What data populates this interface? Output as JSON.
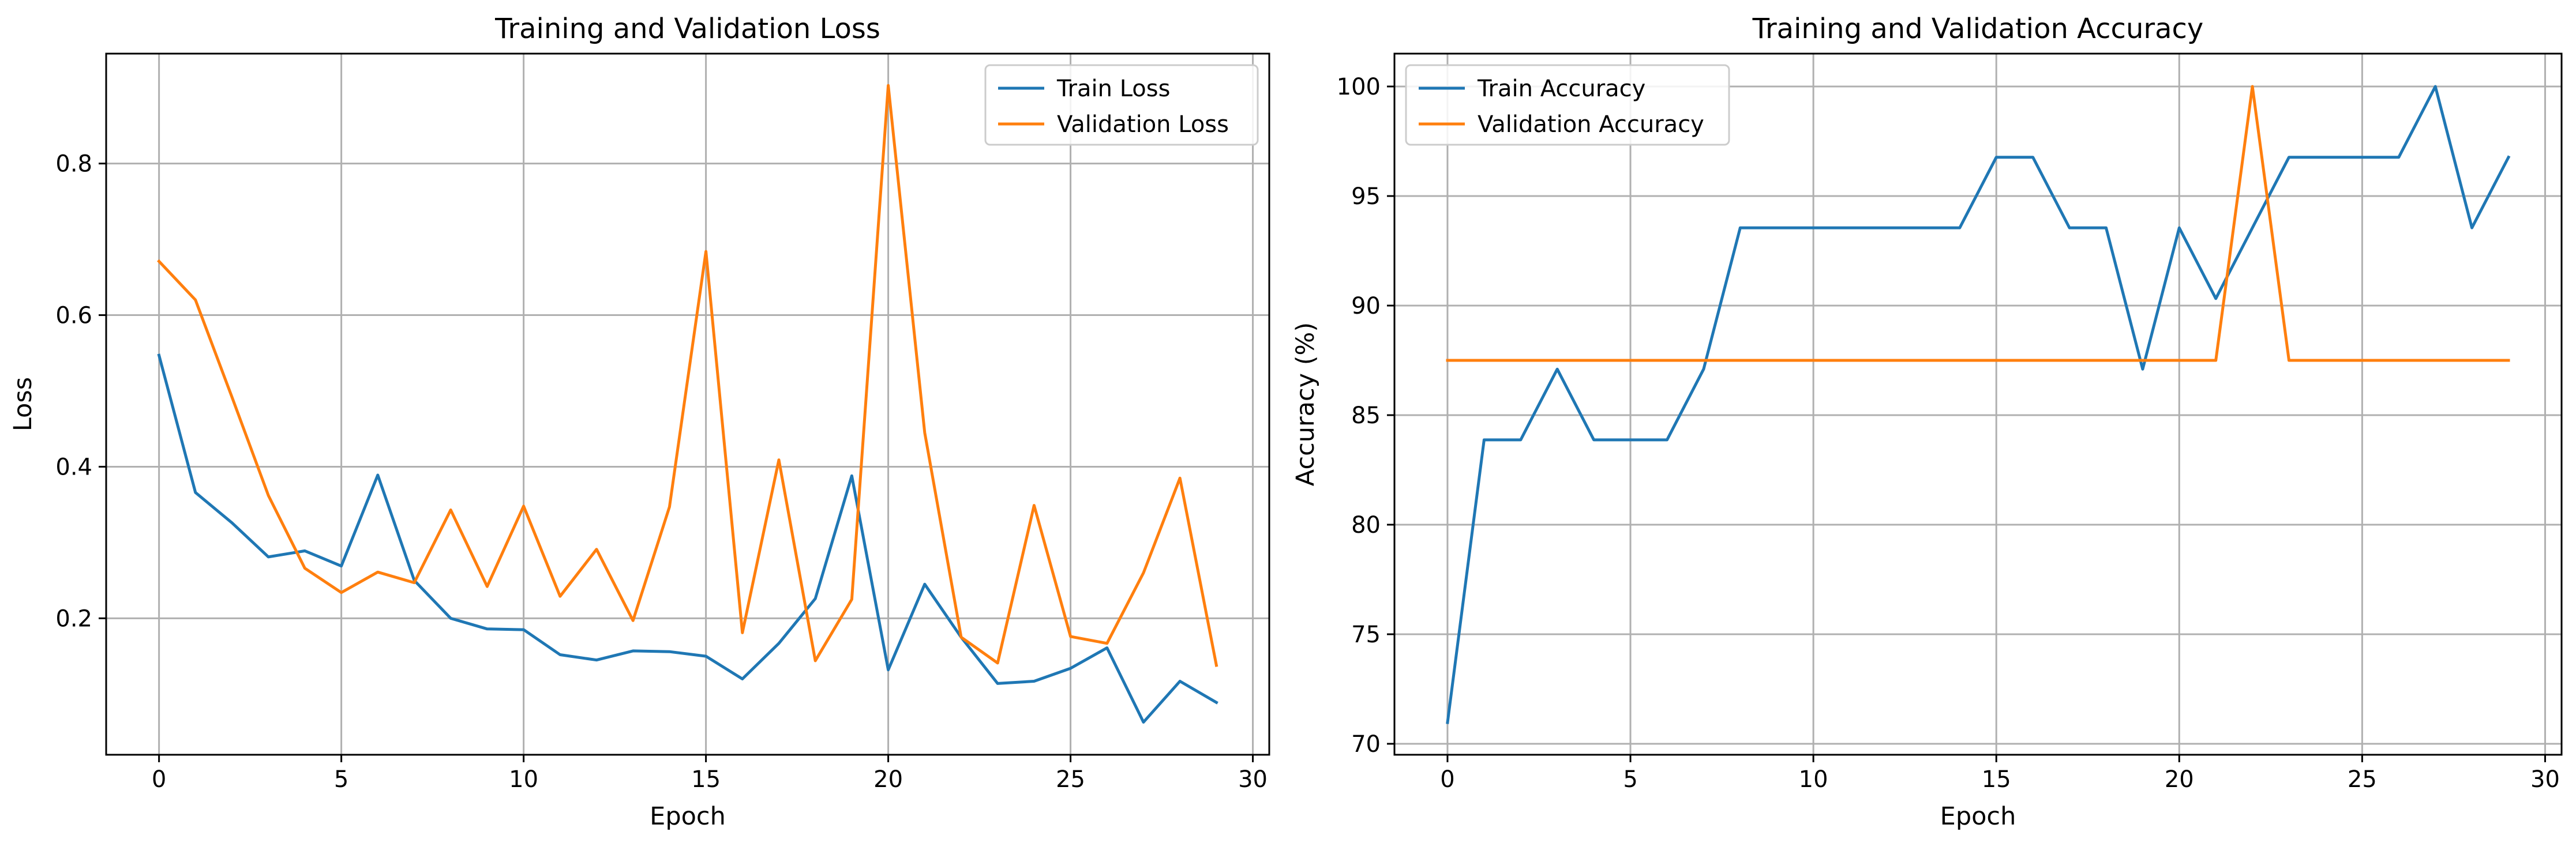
{
  "chart_data": [
    {
      "type": "line",
      "title": "Training and Validation Loss",
      "xlabel": "Epoch",
      "ylabel": "Loss",
      "xlim": [
        -1.45,
        30.45
      ],
      "ylim": [
        0.02,
        0.945
      ],
      "xticks": [
        0,
        5,
        10,
        15,
        20,
        25,
        30
      ],
      "xtick_labels": [
        "0",
        "5",
        "10",
        "15",
        "20",
        "25",
        "30"
      ],
      "yticks": [
        0.2,
        0.4,
        0.6,
        0.8
      ],
      "ytick_labels": [
        "0.2",
        "0.4",
        "0.6",
        "0.8"
      ],
      "grid": true,
      "legend": "upper right",
      "x": [
        0,
        1,
        2,
        3,
        4,
        5,
        6,
        7,
        8,
        9,
        10,
        11,
        12,
        13,
        14,
        15,
        16,
        17,
        18,
        19,
        20,
        21,
        22,
        23,
        24,
        25,
        26,
        27,
        28,
        29
      ],
      "series": [
        {
          "name": "Train Loss",
          "color": "#1f77b4",
          "values": [
            0.547,
            0.366,
            0.326,
            0.281,
            0.289,
            0.269,
            0.389,
            0.25,
            0.2,
            0.186,
            0.185,
            0.152,
            0.145,
            0.157,
            0.156,
            0.15,
            0.12,
            0.167,
            0.226,
            0.388,
            0.132,
            0.245,
            0.175,
            0.114,
            0.117,
            0.134,
            0.161,
            0.063,
            0.117,
            0.089
          ]
        },
        {
          "name": "Validation Loss",
          "color": "#ff7f0e",
          "values": [
            0.671,
            0.62,
            0.492,
            0.362,
            0.266,
            0.234,
            0.261,
            0.247,
            0.343,
            0.242,
            0.348,
            0.229,
            0.291,
            0.197,
            0.347,
            0.684,
            0.181,
            0.409,
            0.144,
            0.225,
            0.903,
            0.445,
            0.175,
            0.141,
            0.349,
            0.176,
            0.167,
            0.26,
            0.385,
            0.138
          ]
        }
      ]
    },
    {
      "type": "line",
      "title": "Training and Validation Accuracy",
      "xlabel": "Epoch",
      "ylabel": "Accuracy (%)",
      "xlim": [
        -1.45,
        30.45
      ],
      "ylim": [
        69.5,
        101.5
      ],
      "xticks": [
        0,
        5,
        10,
        15,
        20,
        25,
        30
      ],
      "xtick_labels": [
        "0",
        "5",
        "10",
        "15",
        "20",
        "25",
        "30"
      ],
      "yticks": [
        70,
        75,
        80,
        85,
        90,
        95,
        100
      ],
      "ytick_labels": [
        "70",
        "75",
        "80",
        "85",
        "90",
        "95",
        "100"
      ],
      "grid": true,
      "legend": "upper left",
      "x": [
        0,
        1,
        2,
        3,
        4,
        5,
        6,
        7,
        8,
        9,
        10,
        11,
        12,
        13,
        14,
        15,
        16,
        17,
        18,
        19,
        20,
        21,
        22,
        23,
        24,
        25,
        26,
        27,
        28,
        29
      ],
      "series": [
        {
          "name": "Train Accuracy",
          "color": "#1f77b4",
          "values": [
            70.97,
            83.87,
            83.87,
            87.1,
            83.87,
            83.87,
            83.87,
            87.1,
            93.55,
            93.55,
            93.55,
            93.55,
            93.55,
            93.55,
            93.55,
            96.77,
            96.77,
            93.55,
            93.55,
            87.1,
            93.55,
            90.32,
            93.55,
            96.77,
            96.77,
            96.77,
            96.77,
            100.0,
            93.55,
            96.77
          ]
        },
        {
          "name": "Validation Accuracy",
          "color": "#ff7f0e",
          "values": [
            87.5,
            87.5,
            87.5,
            87.5,
            87.5,
            87.5,
            87.5,
            87.5,
            87.5,
            87.5,
            87.5,
            87.5,
            87.5,
            87.5,
            87.5,
            87.5,
            87.5,
            87.5,
            87.5,
            87.5,
            87.5,
            87.5,
            100.0,
            87.5,
            87.5,
            87.5,
            87.5,
            87.5,
            87.5,
            87.5
          ]
        }
      ]
    }
  ]
}
